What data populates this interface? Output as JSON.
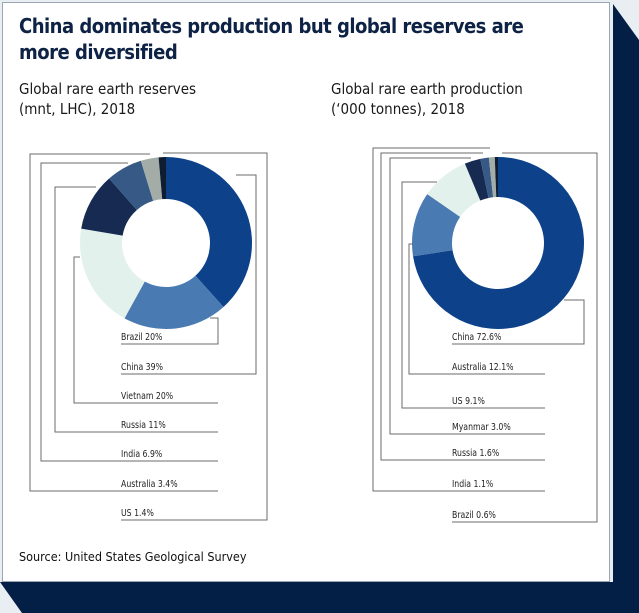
{
  "header": {
    "title": "China dominates production but global reserves are more diversified"
  },
  "footer": {
    "source": "Source: United States Geological Survey"
  },
  "colors": {
    "navy_frame": "#031f45",
    "dark_blue": "#0d428a",
    "mid_blue": "#4a7ab2",
    "mint": "#e3f1ec",
    "navy": "#172a52",
    "slate": "#365a85",
    "gray": "#a4aca8",
    "darkest": "#0f1d33"
  },
  "chart_data": [
    {
      "type": "pie",
      "variant": "donut",
      "title": "Global rare earth reserves (mnt, LHC), 2018",
      "title_lines": [
        "Global rare earth reserves",
        "(mnt, LHC), 2018"
      ],
      "unit": "%",
      "start": "12 o'clock, clockwise",
      "slices": [
        {
          "name": "China",
          "value": 39,
          "label": "China 39%",
          "color": "#0d428a"
        },
        {
          "name": "Brazil",
          "value": 20,
          "label": "Brazil 20%",
          "color": "#4a7ab2"
        },
        {
          "name": "Vietnam",
          "value": 20,
          "label": "Vietnam 20%",
          "color": "#e3f1ec"
        },
        {
          "name": "Russia",
          "value": 11,
          "label": "Russia 11%",
          "color": "#172a52"
        },
        {
          "name": "India",
          "value": 6.9,
          "label": "India 6.9%",
          "color": "#365a85"
        },
        {
          "name": "Australia",
          "value": 3.4,
          "label": "Australia 3.4%",
          "color": "#a4aca8"
        },
        {
          "name": "US",
          "value": 1.4,
          "label": "US 1.4%",
          "color": "#0f1d33"
        }
      ],
      "label_order": [
        "Brazil",
        "China",
        "Vietnam",
        "Russia",
        "India",
        "Australia",
        "US"
      ]
    },
    {
      "type": "pie",
      "variant": "donut",
      "title": "Global rare earth production ('000 tonnes), 2018",
      "title_lines": [
        "Global rare earth production",
        "(‘000 tonnes), 2018"
      ],
      "unit": "%",
      "start": "12 o'clock, clockwise",
      "slices": [
        {
          "name": "China",
          "value": 72.6,
          "label": "China 72.6%",
          "color": "#0d428a"
        },
        {
          "name": "Australia",
          "value": 12.1,
          "label": "Australia 12.1%",
          "color": "#4a7ab2"
        },
        {
          "name": "US",
          "value": 9.1,
          "label": "US 9.1%",
          "color": "#e3f1ec"
        },
        {
          "name": "Myanmar",
          "value": 3.0,
          "label": "Myanmar 3.0%",
          "color": "#172a52"
        },
        {
          "name": "Russia",
          "value": 1.6,
          "label": "Russia 1.6%",
          "color": "#365a85"
        },
        {
          "name": "India",
          "value": 1.1,
          "label": "India 1.1%",
          "color": "#a4aca8"
        },
        {
          "name": "Brazil",
          "value": 0.6,
          "label": "Brazil 0.6%",
          "color": "#0f1d33"
        }
      ],
      "label_order": [
        "China",
        "Australia",
        "US",
        "Myanmar",
        "Russia",
        "India",
        "Brazil"
      ]
    }
  ]
}
